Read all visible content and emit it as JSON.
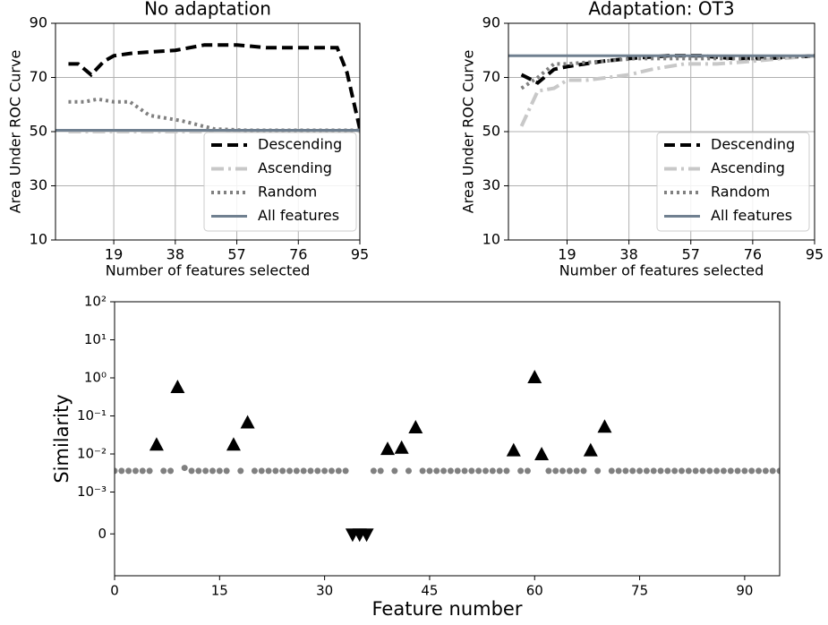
{
  "chart_data": [
    {
      "type": "line",
      "title": "No adaptation",
      "xlabel": "Number of features selected",
      "ylabel": "Area Under ROC Curve",
      "xlim": [
        1,
        95
      ],
      "ylim": [
        10,
        90
      ],
      "xticks": [
        19,
        38,
        57,
        76,
        95
      ],
      "yticks": [
        10,
        30,
        50,
        70,
        90
      ],
      "grid": true,
      "legend": "lower right",
      "series": [
        {
          "name": "Descending",
          "color": "#000000",
          "linestyle": "dashed",
          "x": [
            5,
            8,
            12,
            16,
            19,
            25,
            38,
            47,
            57,
            66,
            76,
            88,
            91,
            95
          ],
          "values": [
            75,
            75,
            71,
            76,
            78,
            79,
            80,
            82,
            82,
            81,
            81,
            81,
            72,
            51
          ]
        },
        {
          "name": "Ascending",
          "color": "#c8c8c8",
          "linestyle": "dashdot",
          "x": [
            5,
            20,
            40,
            60,
            80,
            95
          ],
          "values": [
            50,
            50,
            50,
            50,
            50,
            50
          ]
        },
        {
          "name": "Random",
          "color": "#808080",
          "linestyle": "dotted",
          "x": [
            5,
            10,
            14,
            19,
            24,
            30,
            35,
            40,
            50,
            60,
            95
          ],
          "values": [
            61,
            61,
            62,
            61,
            61,
            56,
            55,
            54,
            51,
            50.5,
            50.5
          ]
        },
        {
          "name": "All features",
          "color": "#708090",
          "linestyle": "solid",
          "hline": 50.5
        }
      ]
    },
    {
      "type": "line",
      "title": "Adaptation: OT3",
      "xlabel": "Number of features selected",
      "ylabel": "Area Under ROC Curve",
      "xlim": [
        1,
        95
      ],
      "ylim": [
        10,
        90
      ],
      "xticks": [
        19,
        38,
        57,
        76,
        95
      ],
      "yticks": [
        10,
        30,
        50,
        70,
        90
      ],
      "grid": true,
      "legend": "lower right",
      "series": [
        {
          "name": "Descending",
          "color": "#000000",
          "linestyle": "dashed",
          "x": [
            5,
            10,
            15,
            19,
            30,
            38,
            50,
            60,
            70,
            80,
            95
          ],
          "values": [
            71,
            68,
            73,
            74,
            76,
            77,
            78,
            78,
            77,
            77,
            78
          ]
        },
        {
          "name": "Ascending",
          "color": "#c8c8c8",
          "linestyle": "dashdot",
          "x": [
            5,
            10,
            15,
            19,
            25,
            38,
            45,
            55,
            65,
            76,
            85,
            95
          ],
          "values": [
            52,
            65,
            66,
            69,
            69,
            71,
            73,
            75,
            75,
            76,
            77,
            78
          ]
        },
        {
          "name": "Random",
          "color": "#808080",
          "linestyle": "dotted",
          "x": [
            5,
            10,
            15,
            19,
            30,
            40,
            50,
            60,
            76,
            95
          ],
          "values": [
            66,
            70,
            75,
            75,
            76,
            77,
            77,
            77,
            77,
            78
          ]
        },
        {
          "name": "All features",
          "color": "#708090",
          "linestyle": "solid",
          "hline": 78
        }
      ]
    },
    {
      "type": "scatter",
      "xlabel": "Feature number",
      "ylabel": "Similarity",
      "xlim": [
        0,
        95
      ],
      "ylim": [
        -0.001,
        100
      ],
      "yscale": "symlog",
      "linthresh": 0.001,
      "linscale": 1.1,
      "xticks": [
        0,
        15,
        30,
        45,
        60,
        75,
        90
      ],
      "yticks": [
        {
          "value": 100,
          "label": "10²"
        },
        {
          "value": 10,
          "label": "10¹"
        },
        {
          "value": 1,
          "label": "10⁰"
        },
        {
          "value": 0.1,
          "label": "10⁻¹"
        },
        {
          "value": 0.01,
          "label": "10⁻²"
        },
        {
          "value": 0.001,
          "label": "10⁻³"
        },
        0
      ],
      "series": [
        {
          "marker": "o",
          "color": "#808080",
          "x": [
            0,
            1,
            2,
            3,
            4,
            5,
            7,
            8,
            10,
            11,
            12,
            13,
            14,
            15,
            16,
            18,
            20,
            21,
            22,
            23,
            24,
            25,
            26,
            27,
            28,
            29,
            30,
            31,
            32,
            33,
            37,
            38,
            40,
            42,
            44,
            45,
            46,
            47,
            48,
            49,
            50,
            51,
            52,
            53,
            54,
            55,
            56,
            58,
            59,
            62,
            63,
            64,
            65,
            66,
            67,
            69,
            71,
            72,
            73,
            74,
            75,
            76,
            77,
            78,
            79,
            80,
            81,
            82,
            83,
            84,
            85,
            86,
            87,
            88,
            89,
            90,
            91,
            92,
            93,
            94,
            95
          ],
          "values": [
            0.0036,
            0.0036,
            0.0036,
            0.0036,
            0.0036,
            0.0036,
            0.0036,
            0.0036,
            0.0043,
            0.0036,
            0.0036,
            0.0036,
            0.0036,
            0.0036,
            0.0036,
            0.0036,
            0.0036,
            0.0036,
            0.0036,
            0.0036,
            0.0036,
            0.0036,
            0.0036,
            0.0036,
            0.0036,
            0.0036,
            0.0036,
            0.0036,
            0.0036,
            0.0036,
            0.0036,
            0.0036,
            0.0036,
            0.0036,
            0.0036,
            0.0036,
            0.0036,
            0.0036,
            0.0036,
            0.0036,
            0.0036,
            0.0036,
            0.0036,
            0.0036,
            0.0036,
            0.0036,
            0.0036,
            0.0036,
            0.0036,
            0.0036,
            0.0036,
            0.0036,
            0.0036,
            0.0036,
            0.0036,
            0.0036,
            0.0036,
            0.0036,
            0.0036,
            0.0036,
            0.0036,
            0.0036,
            0.0036,
            0.0036,
            0.0036,
            0.0036,
            0.0036,
            0.0036,
            0.0036,
            0.0036,
            0.0036,
            0.0036,
            0.0036,
            0.0036,
            0.0036,
            0.0036,
            0.0036,
            0.0036,
            0.0036,
            0.0036,
            0.0036
          ]
        },
        {
          "marker": "^",
          "color": "#000000",
          "x": [
            6,
            9,
            17,
            19,
            39,
            41,
            43,
            57,
            60,
            61,
            68,
            70
          ],
          "values": [
            0.017,
            0.55,
            0.017,
            0.065,
            0.013,
            0.014,
            0.048,
            0.012,
            1.0,
            0.0095,
            0.012,
            0.05
          ]
        },
        {
          "marker": "v",
          "color": "#000000",
          "x": [
            34,
            35,
            36
          ],
          "values": [
            0,
            0,
            0
          ]
        }
      ]
    }
  ]
}
